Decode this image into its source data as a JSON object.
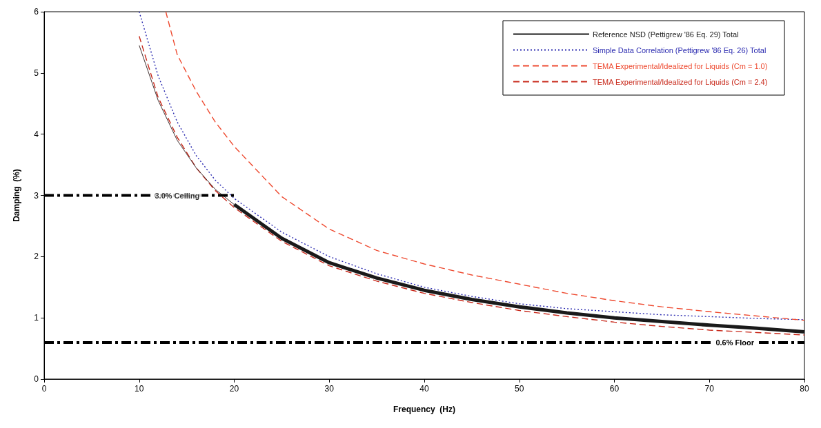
{
  "chart_data": {
    "type": "line",
    "xlabel": "Frequency  (Hz)",
    "ylabel": "Damping  (%)",
    "xlim": [
      0,
      80
    ],
    "ylim": [
      0,
      6
    ],
    "xticks": [
      0,
      10,
      20,
      30,
      40,
      50,
      60,
      70,
      80
    ],
    "yticks": [
      0,
      1,
      2,
      3,
      4,
      5,
      6
    ],
    "grid": false,
    "legend": "top right",
    "marker": "none",
    "series": [
      {
        "name": "Reference NSD (Pettigrew '86 Eq. 29) Total",
        "color": "#1a1a1a",
        "line_style": "solid",
        "x": [
          20,
          25,
          30,
          35,
          40,
          45,
          50,
          55,
          60,
          65,
          70,
          75,
          80
        ],
        "values": [
          2.85,
          2.3,
          1.9,
          1.65,
          1.45,
          1.3,
          1.18,
          1.08,
          1.0,
          0.94,
          0.88,
          0.83,
          0.77
        ]
      },
      {
        "name": "Simple Data Correlation (Pettigrew '86 Eq. 26) Total",
        "color": "#2b2bb0",
        "line_style": "dotted",
        "x": [
          10,
          12,
          14,
          16,
          18,
          20,
          25,
          30,
          35,
          40,
          45,
          50,
          55,
          60,
          65,
          70,
          75,
          80
        ],
        "values": [
          6.0,
          4.95,
          4.2,
          3.65,
          3.25,
          2.95,
          2.4,
          2.0,
          1.72,
          1.5,
          1.35,
          1.23,
          1.15,
          1.1,
          1.05,
          1.02,
          0.99,
          0.97
        ]
      },
      {
        "name": "TEMA Experimental/Idealized for Liquids (Cm = 1.0)",
        "color": "#ee4a30",
        "line_style": "dashed",
        "x": [
          12.8,
          14,
          16,
          18,
          20,
          25,
          30,
          35,
          40,
          45,
          50,
          55,
          60,
          65,
          70,
          75,
          80
        ],
        "values": [
          6.0,
          5.3,
          4.7,
          4.2,
          3.8,
          2.98,
          2.45,
          2.1,
          1.88,
          1.7,
          1.55,
          1.4,
          1.28,
          1.18,
          1.1,
          1.03,
          0.96
        ]
      },
      {
        "name": "TEMA Experimental/Idealized for Liquids (Cm = 2.4)",
        "color": "#c8281a",
        "line_style": "dashed",
        "x": [
          10,
          12,
          14,
          16,
          18,
          20,
          25,
          30,
          35,
          40,
          45,
          50,
          55,
          60,
          65,
          70,
          75,
          80
        ],
        "values": [
          5.6,
          4.6,
          3.95,
          3.45,
          3.08,
          2.8,
          2.25,
          1.85,
          1.6,
          1.4,
          1.25,
          1.12,
          1.02,
          0.93,
          0.86,
          0.8,
          0.76,
          0.72
        ]
      },
      {
        "color": "#403030",
        "line_style": "solid",
        "x": [
          10,
          12,
          14,
          16,
          18,
          20
        ],
        "values": [
          5.45,
          4.55,
          3.9,
          3.45,
          3.1,
          2.85
        ]
      },
      {
        "color": "#000000",
        "line_style": "dashed",
        "x": [
          0,
          20
        ],
        "values": [
          3,
          3
        ]
      }
    ],
    "ref_lines": [
      {
        "axis": "y",
        "value": 0.6,
        "label": "0.6% Floor",
        "color": "#000000",
        "line_style": "dashed"
      }
    ],
    "annotations": [
      {
        "text": "3.0% Ceiling",
        "x": 14,
        "y": 3
      }
    ]
  }
}
